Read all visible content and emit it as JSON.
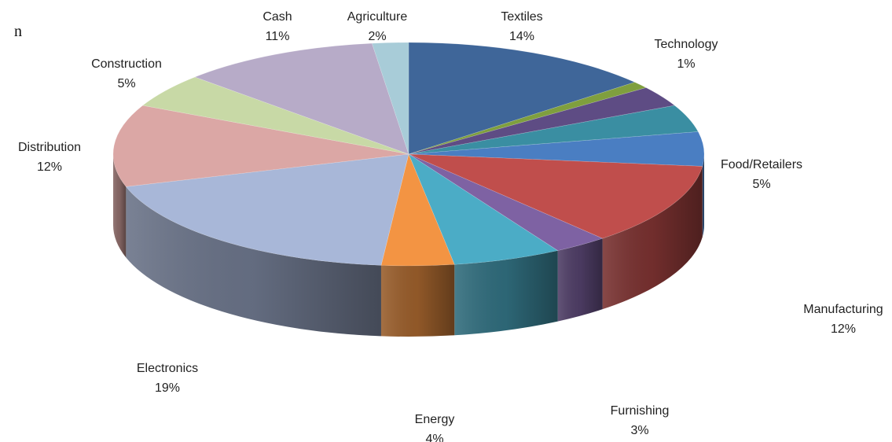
{
  "page": {
    "partial_text": "n"
  },
  "chart_data": {
    "type": "pie",
    "style": "3d",
    "slices": [
      {
        "label": "Textiles",
        "value": 14,
        "value_label": "14%",
        "color": "#3F6699"
      },
      {
        "label": "Technology",
        "value": 1,
        "value_label": "1%",
        "color": "#7F9F3E"
      },
      {
        "label": "",
        "value": 3,
        "value_label": "",
        "color": "#5E4C84"
      },
      {
        "label": "",
        "value": 4,
        "value_label": "",
        "color": "#3A8EA2"
      },
      {
        "label": "Food/Retailers",
        "value": 5,
        "value_label": "5%",
        "color": "#4A7EC2"
      },
      {
        "label": "Manufacturing",
        "value": 12,
        "value_label": "12%",
        "color": "#C04E4C"
      },
      {
        "label": "Furnishing",
        "value": 3,
        "value_label": "3%",
        "color": "#7E62A3"
      },
      {
        "label": "",
        "value": 6,
        "value_label": "",
        "color": "#4BACC6"
      },
      {
        "label": "Energy",
        "value": 4,
        "value_label": "4%",
        "color": "#F39443"
      },
      {
        "label": "Electronics",
        "value": 19,
        "value_label": "19%",
        "color": "#A8B7D8"
      },
      {
        "label": "Distribution",
        "value": 12,
        "value_label": "12%",
        "color": "#DBA7A5"
      },
      {
        "label": "Construction",
        "value": 5,
        "value_label": "5%",
        "color": "#C8D9A6"
      },
      {
        "label": "Cash",
        "value": 11,
        "value_label": "11%",
        "color": "#B7ABC8"
      },
      {
        "label": "Agriculture",
        "value": 2,
        "value_label": "2%",
        "color": "#A8CCD8"
      }
    ],
    "title": "",
    "legend": "none",
    "labels": "outside"
  }
}
